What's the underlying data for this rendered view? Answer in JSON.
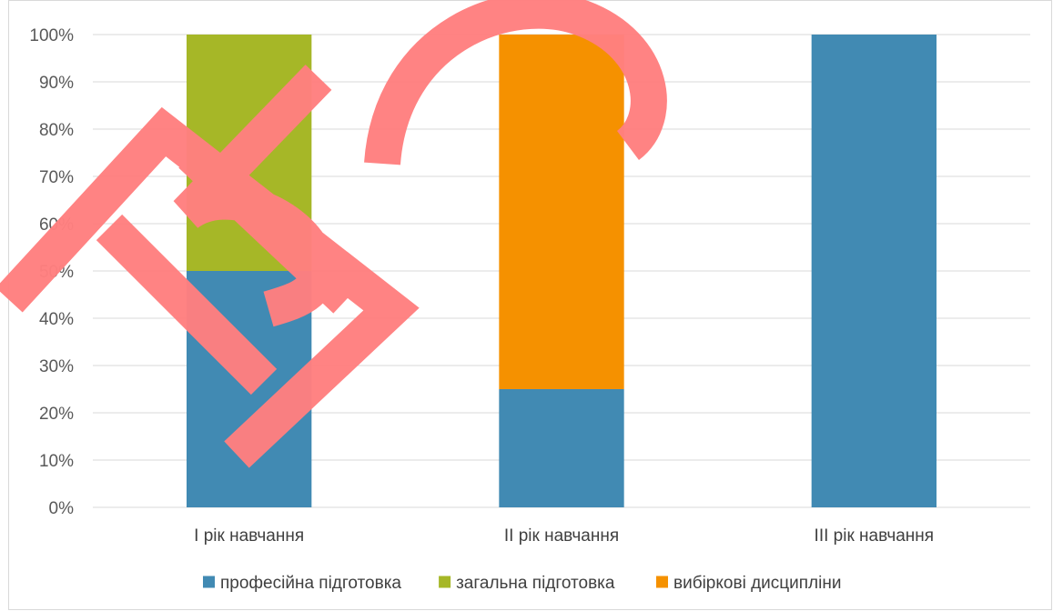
{
  "chart_data": {
    "type": "bar",
    "stacked": true,
    "normalized": true,
    "categories": [
      "I рік навчання",
      "II рік навчання",
      "III рік навчання"
    ],
    "series": [
      {
        "name": "професійна підготовка",
        "color": "#418ab3",
        "values": [
          50,
          25,
          100
        ]
      },
      {
        "name": "загальна підготовка",
        "color": "#a6b727",
        "values": [
          50,
          0,
          0
        ]
      },
      {
        "name": "вибіркові дисципліни",
        "color": "#f59100",
        "values": [
          0,
          75,
          0
        ]
      }
    ],
    "y_ticks": [
      "0%",
      "10%",
      "20%",
      "30%",
      "40%",
      "50%",
      "60%",
      "70%",
      "80%",
      "90%",
      "100%"
    ],
    "ylim": [
      0,
      100
    ],
    "grid": true,
    "legend_position": "bottom"
  },
  "stamp": {
    "text": "ПРОЕКТ",
    "color": "#ff7f7f"
  }
}
